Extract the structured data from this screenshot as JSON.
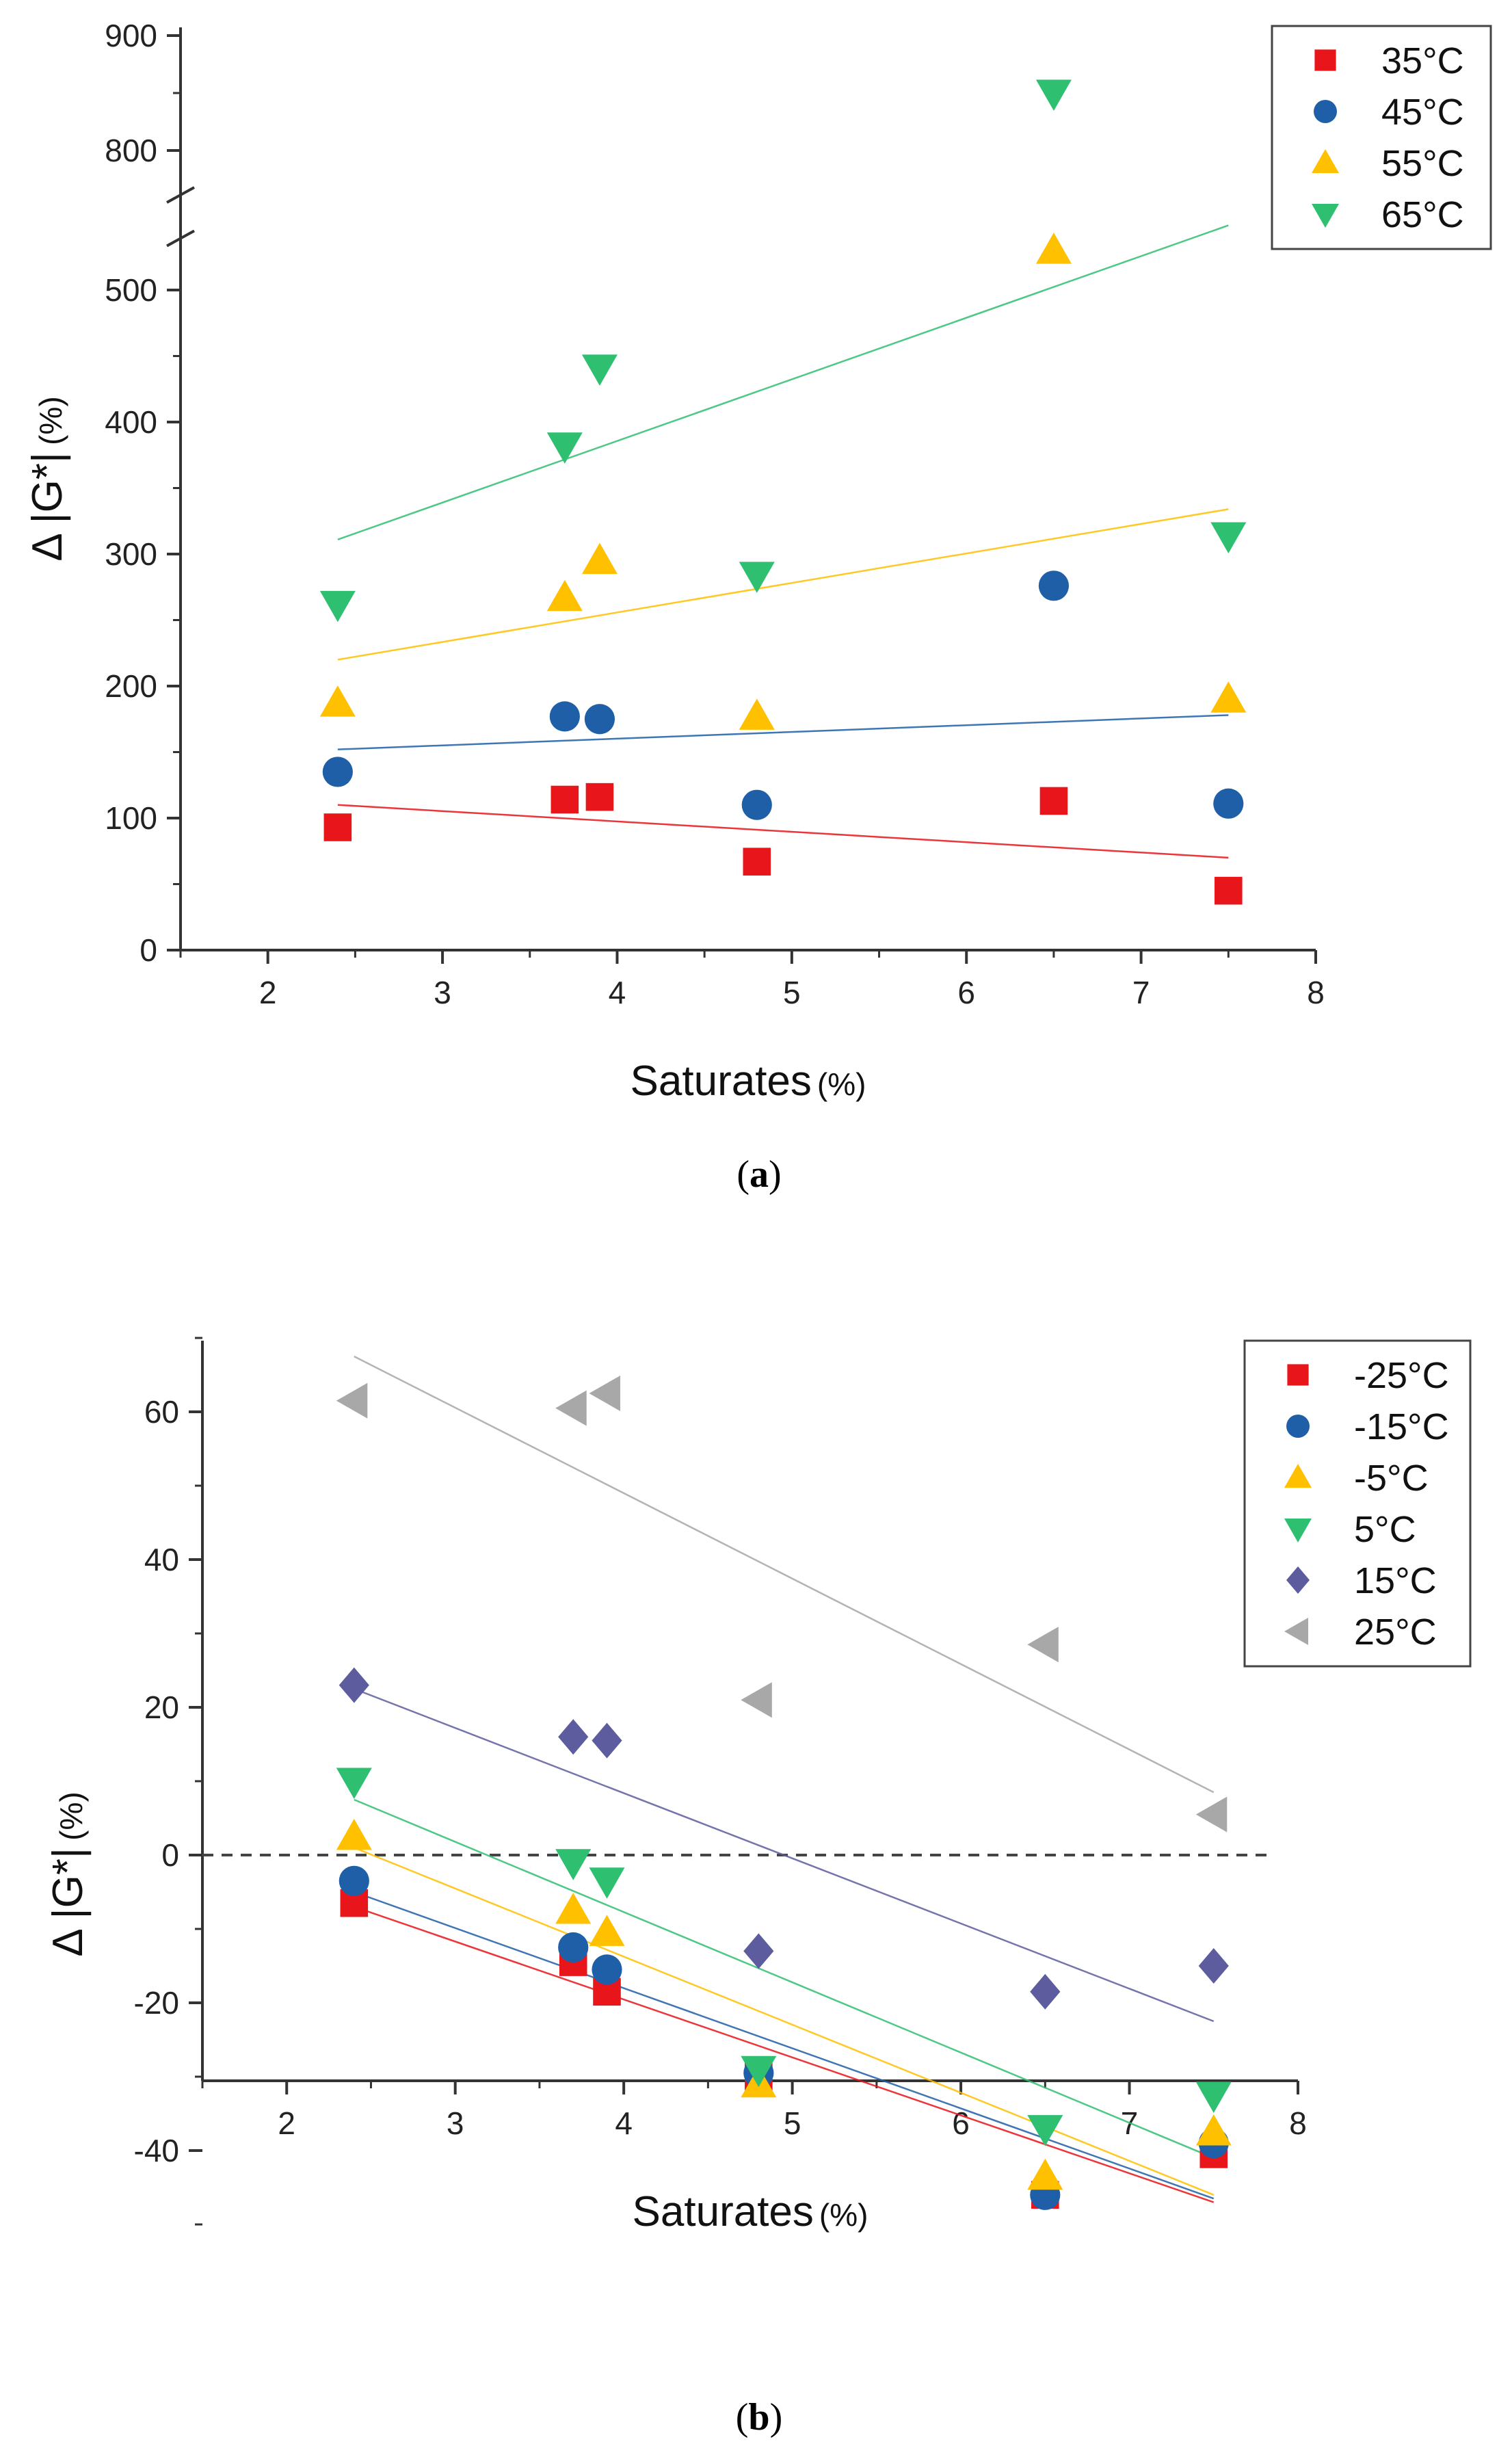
{
  "chart_data": [
    {
      "type": "scatter",
      "panel_label": "a",
      "xlabel": "Saturates",
      "xunit": "(%)",
      "ylabel": "Δ |G*|",
      "yunit": "(%)",
      "xlim": [
        1.5,
        8
      ],
      "ylim": [
        0,
        900
      ],
      "y_axis_break": [
        550,
        750
      ],
      "xticks": [
        2,
        3,
        4,
        5,
        6,
        7,
        8
      ],
      "yticks": [
        0,
        100,
        200,
        300,
        400,
        500,
        800,
        900
      ],
      "grid": false,
      "legend_position": "top-right",
      "x": [
        2.4,
        3.7,
        3.9,
        4.8,
        6.5,
        7.5
      ],
      "series": [
        {
          "name": "35°C",
          "marker": "square",
          "color": "#e8151b",
          "values": [
            93,
            114,
            116,
            67,
            113,
            45
          ],
          "trend": [
            110,
            70
          ]
        },
        {
          "name": "45°C",
          "marker": "circle",
          "color": "#1f5fa8",
          "values": [
            135,
            177,
            175,
            110,
            276,
            111
          ],
          "trend": [
            152,
            178
          ]
        },
        {
          "name": "55°C",
          "marker": "triangle-up",
          "color": "#ffc000",
          "values": [
            187,
            267,
            295,
            177,
            530,
            190
          ],
          "trend": [
            220,
            334
          ]
        },
        {
          "name": "65°C",
          "marker": "triangle-down",
          "color": "#2fbf71",
          "values": [
            262,
            382,
            441,
            284,
            850,
            314
          ],
          "trend": [
            311,
            549
          ]
        }
      ]
    },
    {
      "type": "scatter",
      "panel_label": "b",
      "xlabel": "Saturates",
      "xunit": "(%)",
      "ylabel": "Δ |G*|",
      "yunit": "(%)",
      "xlim": [
        1.5,
        8
      ],
      "ylim": [
        -50,
        70
      ],
      "xticks": [
        2,
        3,
        4,
        5,
        6,
        7,
        8
      ],
      "yticks": [
        -40,
        -20,
        0,
        20,
        40,
        60
      ],
      "reference_line_y": 0,
      "grid": false,
      "legend_position": "top-right",
      "x": [
        2.4,
        3.7,
        3.9,
        4.8,
        6.5,
        7.5
      ],
      "series": [
        {
          "name": "-25°C",
          "marker": "square",
          "color": "#e8151b",
          "values": [
            -6.5,
            -14.5,
            -18.5,
            -30,
            -46,
            -40.5
          ],
          "trend": [
            -7,
            -47
          ]
        },
        {
          "name": "-15°C",
          "marker": "circle",
          "color": "#1f5fa8",
          "values": [
            -3.5,
            -12.5,
            -15.5,
            -29.5,
            -46,
            -39
          ],
          "trend": [
            -5,
            -46.5
          ]
        },
        {
          "name": "-5°C",
          "marker": "triangle-up",
          "color": "#ffc000",
          "values": [
            2.5,
            -7.5,
            -10.5,
            -31,
            -43.5,
            -37.5
          ],
          "trend": [
            1,
            -46
          ]
        },
        {
          "name": "5°C",
          "marker": "triangle-down",
          "color": "#2fbf71",
          "values": [
            10,
            -1,
            -3.5,
            -29,
            -37,
            -32.5
          ],
          "trend": [
            7.5,
            -41
          ]
        },
        {
          "name": "15°C",
          "marker": "diamond",
          "color": "#5d5c9e",
          "values": [
            23,
            16,
            15.5,
            -13,
            -18.5,
            -15
          ],
          "trend": [
            22.5,
            -22.5
          ]
        },
        {
          "name": "25°C",
          "marker": "triangle-left",
          "color": "#a8a8a8",
          "values": [
            61.5,
            60.5,
            62.5,
            21,
            28.5,
            5.5
          ],
          "trend": [
            67.5,
            8.5
          ]
        }
      ]
    }
  ]
}
